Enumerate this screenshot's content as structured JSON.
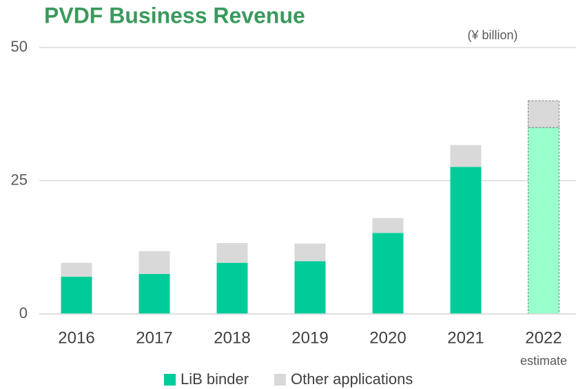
{
  "chart_data": {
    "type": "stacked_bar",
    "title": "PVDF Business Revenue",
    "y_label": "(¥ billion)",
    "categories": [
      "2016",
      "2017",
      "2018",
      "2019",
      "2020",
      "2021",
      "2022"
    ],
    "annotations": [
      {
        "category": 6,
        "text": "estimate"
      }
    ],
    "series": [
      {
        "name": "LiB binder",
        "color": "#00cc99",
        "colors": [
          "#00cc99",
          "#00cc99",
          "#00cc99",
          "#00cc99",
          "#00cc99",
          "#00cc99",
          "#99ffcc"
        ],
        "values": [
          7.0,
          7.5,
          9.6,
          9.9,
          15.2,
          27.6,
          35.0
        ]
      },
      {
        "name": "Other applications",
        "color": "#d9d9d9",
        "colors": [
          "#d9d9d9",
          "#d9d9d9",
          "#d9d9d9",
          "#d9d9d9",
          "#d9d9d9",
          "#d9d9d9",
          "#d9d9d9"
        ],
        "values": [
          2.6,
          4.3,
          3.7,
          3.3,
          2.8,
          4.1,
          5.0
        ]
      }
    ],
    "ylim": [
      0,
      50
    ],
    "yticks": [
      0,
      25,
      50
    ],
    "grid": true,
    "legend": "bottom"
  }
}
